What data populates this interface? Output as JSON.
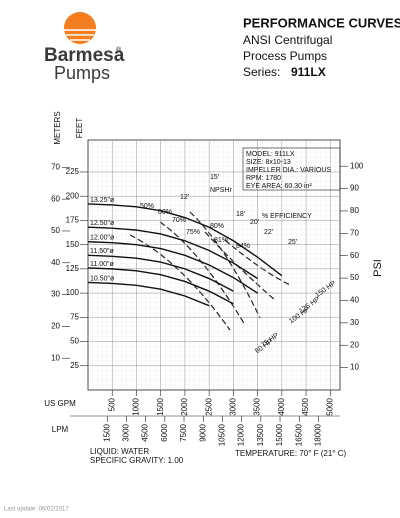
{
  "header": {
    "brand": "Barmesa",
    "registered": "®",
    "brand_sub": "Pumps",
    "title": "PERFORMANCE CURVES",
    "subtitle_1": "ANSI Centrifugal",
    "subtitle_2": "Process Pumps",
    "series_label": "Series:",
    "series_value": "911LX"
  },
  "chart_data": {
    "type": "line",
    "x_label": "US GPM",
    "x2_label": "LPM",
    "y_label": "FEET",
    "y3_label": "METERS",
    "y2_label": "PSI",
    "x": [
      0,
      500,
      1000,
      1500,
      2000,
      2500,
      3000,
      3500,
      4000
    ],
    "series": [
      {
        "name": "13.25\"ø",
        "color": "#111111",
        "values": [
          192,
          191,
          189,
          185,
          178,
          168,
          154,
          137,
          118
        ]
      },
      {
        "name": "12.50\"ø",
        "color": "#111111",
        "values": [
          168,
          167,
          165,
          161,
          154,
          144,
          131,
          115,
          null
        ]
      },
      {
        "name": "12.00\"ø",
        "color": "#111111",
        "values": [
          153,
          152,
          150,
          146,
          139,
          129,
          116,
          100,
          null
        ]
      },
      {
        "name": "11.50\"ø",
        "color": "#111111",
        "values": [
          139,
          138,
          136,
          132,
          125,
          115,
          102,
          null,
          null
        ]
      },
      {
        "name": "11.00\"ø",
        "color": "#111111",
        "values": [
          126,
          125,
          123,
          119,
          112,
          102,
          89,
          null,
          null
        ]
      },
      {
        "name": "10.50\"ø",
        "color": "#111111",
        "values": [
          111,
          110,
          108,
          104,
          97,
          87,
          null,
          null,
          null
        ]
      }
    ],
    "xlim": [
      0,
      5200
    ],
    "xticks": [
      500,
      1000,
      1500,
      2000,
      2500,
      3000,
      3500,
      4000,
      4500,
      5000
    ],
    "x2lim": [
      0,
      19684
    ],
    "x2ticks": [
      1500,
      3000,
      4500,
      6000,
      7500,
      9000,
      10500,
      12000,
      13500,
      15000,
      16500,
      18000
    ],
    "ylim": [
      0,
      258
    ],
    "yticks": [
      25,
      50,
      75,
      100,
      125,
      150,
      175,
      200,
      225
    ],
    "y3lim": [
      0,
      78.6
    ],
    "y3ticks": [
      10,
      20,
      30,
      40,
      50,
      60,
      70
    ],
    "y2lim": [
      0,
      111.7
    ],
    "y2ticks": [
      10,
      20,
      30,
      40,
      50,
      60,
      70,
      80,
      90,
      100
    ],
    "grid": true,
    "model_box": [
      "MODEL: 911LX",
      "SIZE: 8x10-13",
      "IMPELLER DIA.: VARIOUS",
      "RPM: 1780",
      "EYE AREA: 60.30 in²"
    ],
    "annotations": [
      "NPSHr",
      "% EFFICIENCY",
      "50%",
      "60%",
      "70%",
      "75%",
      "80%",
      "81%",
      "84%",
      "12'",
      "15'",
      "18'",
      "20'",
      "22'",
      "25'",
      "150 HP",
      "125 HP",
      "100 HP",
      "75 HP",
      "60 HP"
    ],
    "liquid": "LIQUID: WATER",
    "gravity": "SPECIFIC GRAVITY: 1.00",
    "temperature": "TEMPERATURE: 70° F (21° C)"
  },
  "footer": "Last update: 06/02/2017"
}
